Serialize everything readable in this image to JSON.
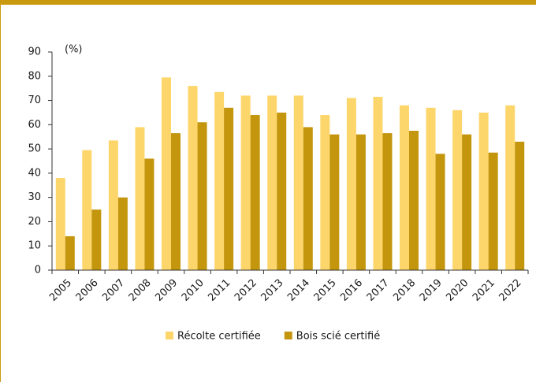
{
  "chart_data": {
    "type": "bar",
    "y_label": "(%)",
    "categories": [
      "2005",
      "2006",
      "2007",
      "2008",
      "2009",
      "2010",
      "2011",
      "2012",
      "2013",
      "2014",
      "2015",
      "2016",
      "2017",
      "2018",
      "2019",
      "2020",
      "2021",
      "2022"
    ],
    "series": [
      {
        "name": "Récolte certifiée",
        "color": "#fdd66b",
        "values": [
          38,
          49.5,
          53.5,
          59,
          79.5,
          76,
          73.5,
          72,
          72,
          72,
          64,
          71,
          71.5,
          68,
          67,
          66,
          65,
          68
        ]
      },
      {
        "name": "Bois scié certifié",
        "color": "#c3960d",
        "values": [
          14,
          25,
          30,
          46,
          56.5,
          61,
          67,
          64,
          65,
          59,
          56,
          56,
          56.5,
          57.5,
          48,
          56,
          48.5,
          53
        ]
      }
    ],
    "ylim": [
      0,
      90
    ],
    "yticks": [
      0,
      10,
      20,
      30,
      40,
      50,
      60,
      70,
      80,
      90
    ]
  }
}
